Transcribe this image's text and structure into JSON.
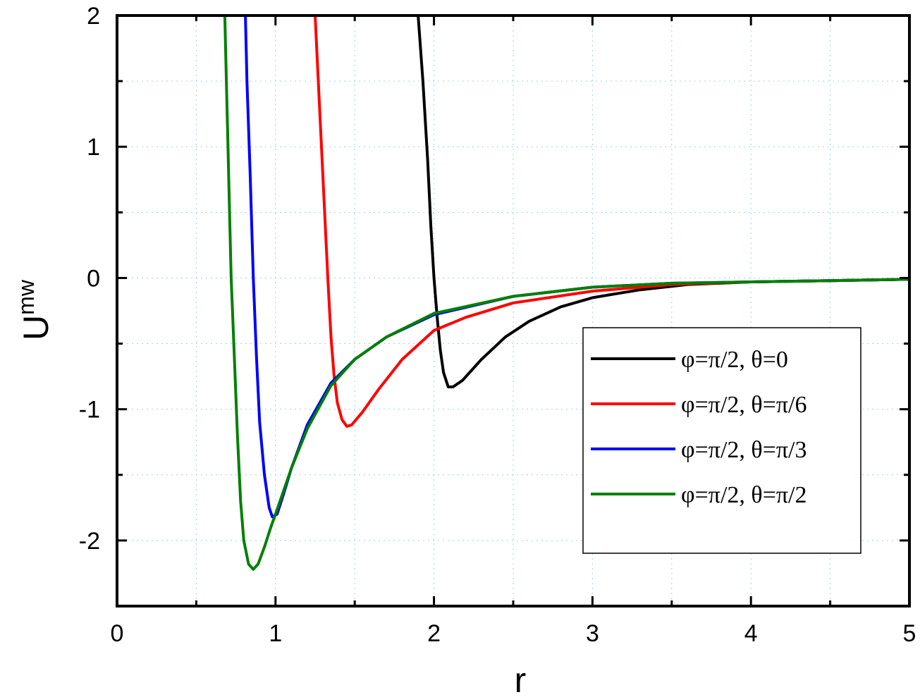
{
  "chart_data": {
    "type": "line",
    "xlabel": "r",
    "ylabel": "U",
    "ylabel_superscript": "mw",
    "xlim": [
      0,
      5
    ],
    "ylim": [
      -2.5,
      2
    ],
    "x_ticks": [
      "0",
      "1",
      "2",
      "3",
      "4",
      "5"
    ],
    "y_ticks": [
      "-2",
      "-1",
      "0",
      "1",
      "2"
    ],
    "grid": "dotted",
    "legend_position": "right",
    "series": [
      {
        "name": "φ=π/2, θ=0",
        "color": "#000000",
        "points": [
          [
            1.9,
            2.0
          ],
          [
            1.93,
            1.5
          ],
          [
            1.96,
            0.9
          ],
          [
            1.98,
            0.4
          ],
          [
            2.0,
            0.0
          ],
          [
            2.02,
            -0.3
          ],
          [
            2.04,
            -0.55
          ],
          [
            2.06,
            -0.72
          ],
          [
            2.09,
            -0.83
          ],
          [
            2.12,
            -0.83
          ],
          [
            2.18,
            -0.78
          ],
          [
            2.3,
            -0.62
          ],
          [
            2.45,
            -0.45
          ],
          [
            2.6,
            -0.33
          ],
          [
            2.8,
            -0.22
          ],
          [
            3.0,
            -0.15
          ],
          [
            3.3,
            -0.09
          ],
          [
            3.6,
            -0.05
          ],
          [
            4.0,
            -0.03
          ],
          [
            4.5,
            -0.02
          ],
          [
            5.0,
            -0.01
          ]
        ]
      },
      {
        "name": "φ=π/2, θ=π/6",
        "color": "#ff0000",
        "points": [
          [
            1.25,
            2.0
          ],
          [
            1.27,
            1.5
          ],
          [
            1.29,
            1.0
          ],
          [
            1.31,
            0.5
          ],
          [
            1.33,
            0.0
          ],
          [
            1.35,
            -0.45
          ],
          [
            1.37,
            -0.75
          ],
          [
            1.39,
            -0.95
          ],
          [
            1.42,
            -1.08
          ],
          [
            1.45,
            -1.13
          ],
          [
            1.48,
            -1.12
          ],
          [
            1.55,
            -1.02
          ],
          [
            1.65,
            -0.85
          ],
          [
            1.8,
            -0.62
          ],
          [
            2.0,
            -0.4
          ],
          [
            2.2,
            -0.3
          ],
          [
            2.5,
            -0.19
          ],
          [
            3.0,
            -0.1
          ],
          [
            3.5,
            -0.05
          ],
          [
            4.0,
            -0.03
          ],
          [
            4.5,
            -0.02
          ],
          [
            5.0,
            -0.01
          ]
        ]
      },
      {
        "name": "φ=π/2, θ=π/3",
        "color": "#0000ff",
        "points": [
          [
            0.81,
            2.0
          ],
          [
            0.82,
            1.5
          ],
          [
            0.84,
            0.8
          ],
          [
            0.86,
            0.0
          ],
          [
            0.88,
            -0.6
          ],
          [
            0.9,
            -1.1
          ],
          [
            0.93,
            -1.5
          ],
          [
            0.96,
            -1.75
          ],
          [
            0.98,
            -1.82
          ],
          [
            1.01,
            -1.8
          ],
          [
            1.05,
            -1.65
          ],
          [
            1.1,
            -1.45
          ],
          [
            1.2,
            -1.12
          ],
          [
            1.35,
            -0.8
          ],
          [
            1.5,
            -0.62
          ],
          [
            1.7,
            -0.45
          ],
          [
            2.0,
            -0.28
          ],
          [
            2.5,
            -0.14
          ],
          [
            3.0,
            -0.07
          ],
          [
            3.5,
            -0.04
          ],
          [
            4.0,
            -0.03
          ],
          [
            4.5,
            -0.02
          ],
          [
            5.0,
            -0.01
          ]
        ]
      },
      {
        "name": "φ=π/2, θ=π/2",
        "color": "#008000",
        "points": [
          [
            0.68,
            2.0
          ],
          [
            0.69,
            1.5
          ],
          [
            0.7,
            1.0
          ],
          [
            0.71,
            0.5
          ],
          [
            0.72,
            0.0
          ],
          [
            0.74,
            -0.6
          ],
          [
            0.76,
            -1.2
          ],
          [
            0.78,
            -1.7
          ],
          [
            0.8,
            -2.0
          ],
          [
            0.83,
            -2.18
          ],
          [
            0.86,
            -2.22
          ],
          [
            0.89,
            -2.18
          ],
          [
            0.93,
            -2.05
          ],
          [
            0.97,
            -1.9
          ],
          [
            1.0,
            -1.8
          ],
          [
            1.1,
            -1.45
          ],
          [
            1.2,
            -1.15
          ],
          [
            1.35,
            -0.82
          ],
          [
            1.5,
            -0.62
          ],
          [
            1.7,
            -0.45
          ],
          [
            2.0,
            -0.27
          ],
          [
            2.5,
            -0.14
          ],
          [
            3.0,
            -0.07
          ],
          [
            3.5,
            -0.04
          ],
          [
            4.0,
            -0.03
          ],
          [
            4.5,
            -0.02
          ],
          [
            5.0,
            -0.01
          ]
        ]
      }
    ]
  }
}
